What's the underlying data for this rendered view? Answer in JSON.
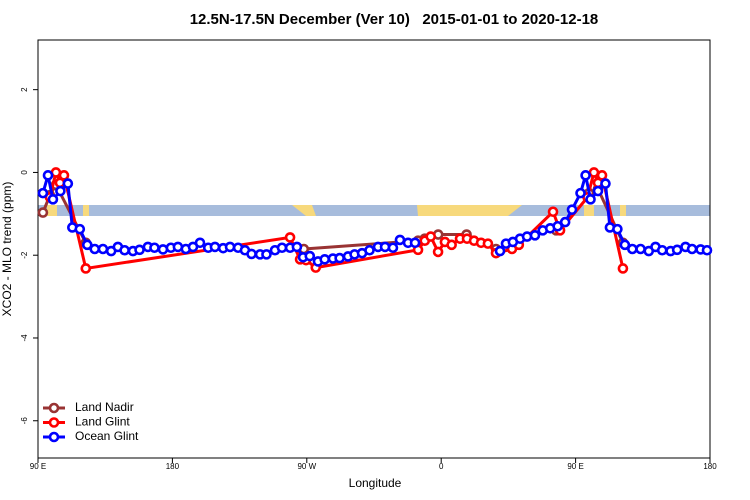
{
  "chart_data": {
    "type": "line",
    "title": "12.5N-17.5N December (Ver 10)   2015-01-01 to 2020-12-18",
    "x_label": "Longitude",
    "y_label": "XCO2 - MLO trend (ppm)",
    "xlim": [
      90,
      540
    ],
    "ylim": [
      -6.9,
      3.2
    ],
    "xticks": [
      {
        "value": 90,
        "label": "90 E"
      },
      {
        "value": 180,
        "label": "180"
      },
      {
        "value": 270,
        "label": "90 W"
      },
      {
        "value": 360,
        "label": "0"
      },
      {
        "value": 450,
        "label": "90 E"
      },
      {
        "value": 540,
        "label": "180"
      }
    ],
    "yticks": [
      -6,
      -4,
      -2,
      0,
      2
    ],
    "legend": "bottom-left",
    "series": [
      {
        "name": "Land Nadir",
        "color": "#993333",
        "x": [
          93.3,
          98,
          102,
          122,
          258.8,
          268,
          344.5,
          349,
          358,
          377,
          396.7,
          434.9,
          437,
          453.6,
          459,
          465,
          481.7
        ],
        "values": [
          -0.97,
          -0.55,
          -0.3,
          -1.7,
          null,
          -1.85,
          -1.65,
          -1.6,
          -1.5,
          -1.5,
          -1.85,
          null,
          -1.4,
          null,
          -0.5,
          -0.4,
          -1.7
        ]
      },
      {
        "name": "Land Glint",
        "color": "#ff0000",
        "x": [
          98,
          102,
          104.7,
          107.4,
          122,
          258.8,
          265.5,
          269.5,
          276,
          344.5,
          349,
          353,
          357.9,
          362.5,
          367,
          372.6,
          377.3,
          382,
          386.7,
          391.3,
          396.7,
          407.4,
          412,
          434.9,
          439.6,
          458,
          462.3,
          465,
          467.7,
          481.7
        ],
        "values": [
          -0.6,
          0,
          -0.25,
          -0.07,
          -2.32,
          -1.57,
          -2.1,
          -2.12,
          -2.3,
          -1.87,
          -1.65,
          -1.55,
          -1.92,
          -1.68,
          -1.75,
          -1.6,
          -1.6,
          -1.65,
          -1.7,
          -1.72,
          -1.95,
          -1.85,
          -1.75,
          -0.95,
          -1.4,
          -0.6,
          0,
          -0.25,
          -0.07,
          -2.32
        ]
      },
      {
        "name": "Ocean Glint",
        "color": "#0000ff",
        "x": [
          93.3,
          96.7,
          100,
          105,
          110,
          113,
          118,
          123,
          128,
          133.5,
          139,
          143.5,
          148,
          153.6,
          158,
          163.6,
          168,
          173.7,
          179,
          183.7,
          189,
          193.8,
          198.5,
          204,
          208.5,
          214,
          218.6,
          224,
          228.6,
          233,
          238.7,
          243,
          248.7,
          253.4,
          258.8,
          263.4,
          267.5,
          272,
          277.5,
          282,
          287.5,
          292,
          297.6,
          302,
          307,
          312,
          317.7,
          322.4,
          327.7,
          332.4,
          337.8,
          342.5,
          370,
          399.4,
          403.4,
          408,
          412.8,
          417.5,
          422.8,
          428,
          433,
          438,
          443,
          447.6,
          453.3,
          456.7,
          460,
          465,
          470,
          473,
          478,
          483,
          488,
          493.5,
          499,
          503.5,
          508,
          513.6,
          518,
          523.6,
          528,
          533.7,
          538
        ],
        "values": [
          -0.5,
          -0.07,
          -0.65,
          -0.45,
          -0.27,
          -1.33,
          -1.37,
          -1.75,
          -1.85,
          -1.85,
          -1.9,
          -1.8,
          -1.88,
          -1.9,
          -1.87,
          -1.8,
          -1.82,
          -1.86,
          -1.82,
          -1.8,
          -1.85,
          -1.8,
          -1.7,
          -1.82,
          -1.8,
          -1.83,
          -1.8,
          -1.82,
          -1.88,
          -1.97,
          -1.98,
          -1.98,
          -1.88,
          -1.82,
          -1.82,
          -1.8,
          -2.05,
          -2.02,
          -2.15,
          -2.1,
          -2.08,
          -2.07,
          -2.03,
          -1.98,
          -1.95,
          -1.88,
          -1.8,
          -1.8,
          -1.82,
          -1.63,
          -1.7,
          -1.7,
          null,
          -1.9,
          -1.72,
          -1.68,
          -1.6,
          -1.55,
          -1.52,
          -1.4,
          -1.35,
          -1.3,
          -1.2,
          -0.9,
          -0.5,
          -0.07,
          -0.65,
          -0.45,
          -0.27,
          -1.33,
          -1.37,
          -1.75,
          -1.85,
          -1.85,
          -1.9,
          -1.8,
          -1.88,
          -1.9,
          -1.87,
          -1.8,
          -1.85,
          -1.86,
          -1.88
        ]
      }
    ]
  }
}
